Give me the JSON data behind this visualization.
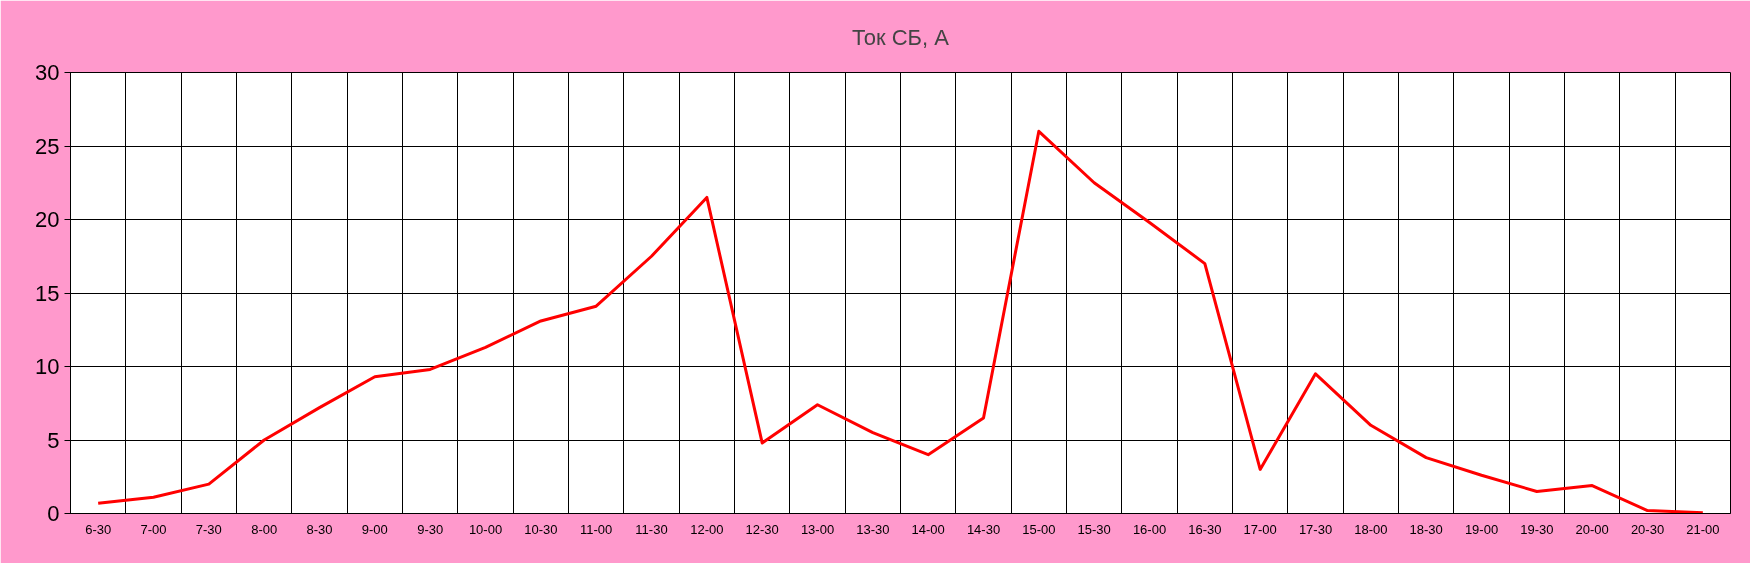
{
  "chart_data": {
    "type": "line",
    "title": "Ток СБ, А",
    "categories": [
      "6-30",
      "7-00",
      "7-30",
      "8-00",
      "8-30",
      "9-00",
      "9-30",
      "10-00",
      "10-30",
      "11-00",
      "11-30",
      "12-00",
      "12-30",
      "13-00",
      "13-30",
      "14-00",
      "14-30",
      "15-00",
      "15-30",
      "16-00",
      "16-30",
      "17-00",
      "17-30",
      "18-00",
      "18-30",
      "19-00",
      "19-30",
      "20-00",
      "20-30",
      "21-00"
    ],
    "series": [
      {
        "color": "#ff0000",
        "values": [
          0.7,
          1.1,
          2.0,
          5.0,
          7.2,
          9.3,
          9.8,
          11.3,
          13.1,
          14.1,
          17.5,
          21.5,
          4.8,
          7.4,
          5.5,
          4.0,
          6.5,
          26.0,
          22.5,
          19.8,
          17.0,
          3.0,
          9.5,
          6.0,
          3.8,
          2.6,
          1.5,
          1.9,
          0.2,
          0.05
        ]
      }
    ],
    "ylim": [
      0,
      30
    ],
    "yticks": [
      0,
      5,
      10,
      15,
      20,
      25,
      30
    ],
    "grid": true,
    "line_style": "solid",
    "marker": "none"
  }
}
